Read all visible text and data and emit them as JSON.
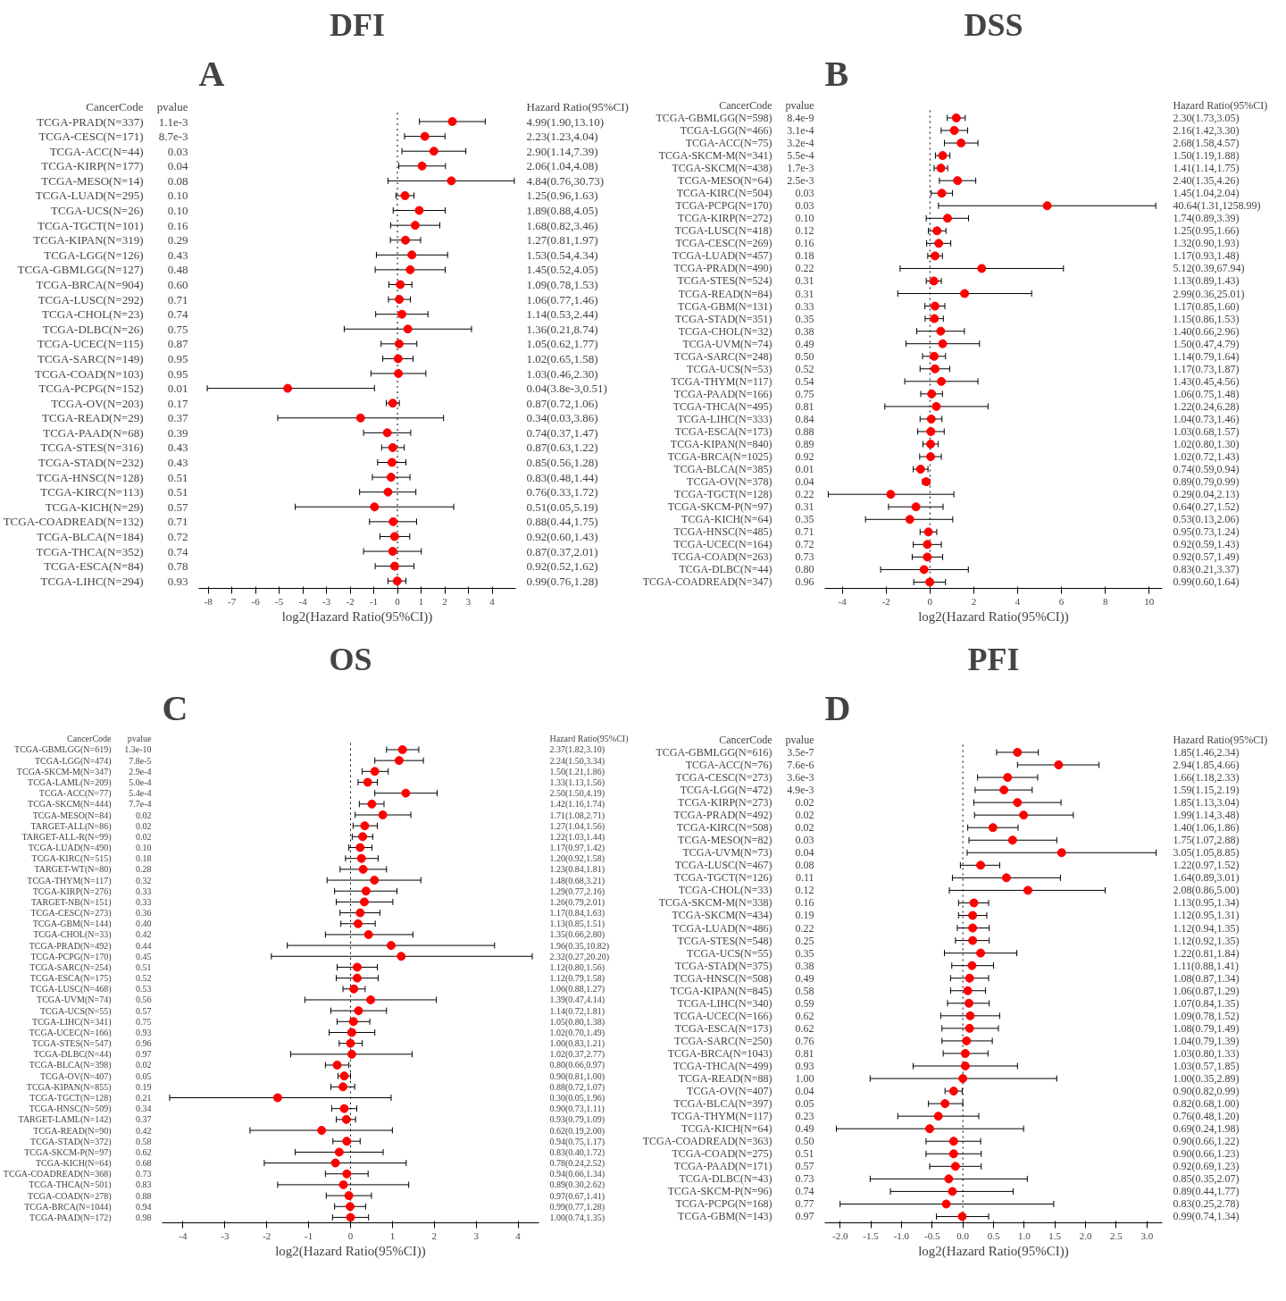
{
  "chart_data": [
    {
      "type": "scatter",
      "orientation": "horizontal",
      "title": "DFI",
      "xlabel": "log2(Hazard Ratio(95%CI))",
      "color": "#ff0000",
      "marker": "circle",
      "grid": false,
      "xlim": [
        -8.4,
        5.0
      ],
      "xticks": [
        -8,
        -7,
        -6,
        -5,
        -4,
        -3,
        -2,
        -1,
        0,
        1,
        2,
        3,
        4
      ],
      "ref_lines": [
        {
          "axis": "x",
          "value": 0,
          "line_style": "dotted"
        }
      ],
      "categories": [
        "TCGA-PRAD(N=337)",
        "TCGA-CESC(N=171)",
        "TCGA-ACC(N=44)",
        "TCGA-KIRP(N=177)",
        "TCGA-MESO(N=14)",
        "TCGA-LUAD(N=295)",
        "TCGA-UCS(N=26)",
        "TCGA-TGCT(N=101)",
        "TCGA-KIPAN(N=319)",
        "TCGA-LGG(N=126)",
        "TCGA-GBMLGG(N=127)",
        "TCGA-BRCA(N=904)",
        "TCGA-LUSC(N=292)",
        "TCGA-CHOL(N=23)",
        "TCGA-DLBC(N=26)",
        "TCGA-UCEC(N=115)",
        "TCGA-SARC(N=149)",
        "TCGA-COAD(N=103)",
        "TCGA-PCPG(N=152)",
        "TCGA-OV(N=203)",
        "TCGA-READ(N=29)",
        "TCGA-PAAD(N=68)",
        "TCGA-STES(N=316)",
        "TCGA-STAD(N=232)",
        "TCGA-HNSC(N=128)",
        "TCGA-KIRC(N=113)",
        "TCGA-KICH(N=29)",
        "TCGA-COADREAD(N=132)",
        "TCGA-BLCA(N=184)",
        "TCGA-THCA(N=352)",
        "TCGA-ESCA(N=84)",
        "TCGA-LIHC(N=294)"
      ],
      "values": [
        2.32,
        1.16,
        1.54,
        1.04,
        2.28,
        0.32,
        0.92,
        0.75,
        0.34,
        0.61,
        0.54,
        0.12,
        0.08,
        0.19,
        0.44,
        0.07,
        0.03,
        0.04,
        -4.64,
        -0.2,
        -1.56,
        -0.43,
        -0.2,
        -0.23,
        -0.27,
        -0.4,
        -0.97,
        -0.18,
        -0.12,
        -0.2,
        -0.12,
        -0.01
      ],
      "errors": [
        [
          0.93,
          3.71
        ],
        [
          0.3,
          2.01
        ],
        [
          0.19,
          2.89
        ],
        [
          0.06,
          2.03
        ],
        [
          -0.4,
          4.94
        ],
        [
          -0.06,
          0.7
        ],
        [
          -0.18,
          2.02
        ],
        [
          -0.29,
          1.79
        ],
        [
          -0.3,
          0.98
        ],
        [
          -0.89,
          2.12
        ],
        [
          -0.94,
          2.02
        ],
        [
          -0.36,
          0.61
        ],
        [
          -0.38,
          0.55
        ],
        [
          -0.92,
          1.29
        ],
        [
          -2.25,
          3.13
        ],
        [
          -0.69,
          0.82
        ],
        [
          -0.62,
          0.66
        ],
        [
          -1.12,
          1.2
        ],
        [
          -8.04,
          -0.97
        ],
        [
          -0.47,
          0.08
        ],
        [
          -5.06,
          1.95
        ],
        [
          -1.43,
          0.56
        ],
        [
          -0.67,
          0.29
        ],
        [
          -0.84,
          0.36
        ],
        [
          -1.06,
          0.53
        ],
        [
          -1.6,
          0.78
        ],
        [
          -4.32,
          2.38
        ],
        [
          -1.18,
          0.81
        ],
        [
          -0.74,
          0.52
        ],
        [
          -1.43,
          1.01
        ],
        [
          -0.94,
          0.7
        ],
        [
          -0.4,
          0.36
        ]
      ],
      "annotations": [
        "A",
        "CancerCode",
        "pvalue",
        "Hazard Ratio(95%CI)",
        "1.1e-3",
        "8.7e-3",
        "0.03",
        "0.04",
        "0.08",
        "0.10",
        "0.10",
        "0.16",
        "0.29",
        "0.43",
        "0.48",
        "0.60",
        "0.71",
        "0.74",
        "0.75",
        "0.87",
        "0.95",
        "0.95",
        "0.01",
        "0.17",
        "0.37",
        "0.39",
        "0.43",
        "0.43",
        "0.51",
        "0.51",
        "0.57",
        "0.71",
        "0.72",
        "0.74",
        "0.78",
        "0.93",
        "4.99(1.90,13.10)",
        "2.23(1.23,4.04)",
        "2.90(1.14,7.39)",
        "2.06(1.04,4.08)",
        "4.84(0.76,30.73)",
        "1.25(0.96,1.63)",
        "1.89(0.88,4.05)",
        "1.68(0.82,3.46)",
        "1.27(0.81,1.97)",
        "1.53(0.54,4.34)",
        "1.45(0.52,4.05)",
        "1.09(0.78,1.53)",
        "1.06(0.77,1.46)",
        "1.14(0.53,2.44)",
        "1.36(0.21,8.74)",
        "1.05(0.62,1.77)",
        "1.02(0.65,1.58)",
        "1.03(0.46,2.30)",
        "0.04(3.8e-3,0.51)",
        "0.87(0.72,1.06)",
        "0.34(0.03,3.86)",
        "0.74(0.37,1.47)",
        "0.87(0.63,1.22)",
        "0.85(0.56,1.28)",
        "0.83(0.48,1.44)",
        "0.76(0.33,1.72)",
        "0.51(0.05,5.19)",
        "0.88(0.44,1.75)",
        "0.92(0.60,1.43)",
        "0.87(0.37,2.01)",
        "0.92(0.52,1.62)",
        "0.99(0.76,1.28)"
      ]
    },
    {
      "type": "scatter",
      "orientation": "horizontal",
      "title": "DSS",
      "xlabel": "log2(Hazard Ratio(95%CI))",
      "color": "#ff0000",
      "marker": "circle",
      "grid": false,
      "xlim": [
        -4.8,
        10.6
      ],
      "xticks": [
        -4,
        -2,
        0,
        2,
        4,
        6,
        8,
        10
      ],
      "ref_lines": [
        {
          "axis": "x",
          "value": 0,
          "line_style": "dotted"
        }
      ],
      "categories": [
        "TCGA-GBMLGG(N=598)",
        "TCGA-LGG(N=466)",
        "TCGA-ACC(N=75)",
        "TCGA-SKCM-M(N=341)",
        "TCGA-SKCM(N=438)",
        "TCGA-MESO(N=64)",
        "TCGA-KIRC(N=504)",
        "TCGA-PCPG(N=170)",
        "TCGA-KIRP(N=272)",
        "TCGA-LUSC(N=418)",
        "TCGA-CESC(N=269)",
        "TCGA-LUAD(N=457)",
        "TCGA-PRAD(N=490)",
        "TCGA-STES(N=524)",
        "TCGA-READ(N=84)",
        "TCGA-GBM(N=131)",
        "TCGA-STAD(N=351)",
        "TCGA-CHOL(N=32)",
        "TCGA-UVM(N=74)",
        "TCGA-SARC(N=248)",
        "TCGA-UCS(N=53)",
        "TCGA-THYM(N=117)",
        "TCGA-PAAD(N=166)",
        "TCGA-THCA(N=495)",
        "TCGA-LIHC(N=333)",
        "TCGA-ESCA(N=173)",
        "TCGA-KIPAN(N=840)",
        "TCGA-BRCA(N=1025)",
        "TCGA-BLCA(N=385)",
        "TCGA-OV(N=378)",
        "TCGA-TGCT(N=128)",
        "TCGA-SKCM-P(N=97)",
        "TCGA-KICH(N=64)",
        "TCGA-HNSC(N=485)",
        "TCGA-UCEC(N=164)",
        "TCGA-COAD(N=263)",
        "TCGA-DLBC(N=44)",
        "TCGA-COADREAD(N=347)"
      ],
      "values": [
        1.2,
        1.11,
        1.42,
        0.58,
        0.5,
        1.26,
        0.54,
        5.35,
        0.8,
        0.32,
        0.4,
        0.23,
        2.36,
        0.18,
        1.58,
        0.23,
        0.2,
        0.49,
        0.58,
        0.19,
        0.23,
        0.52,
        0.08,
        0.29,
        0.06,
        0.04,
        0.03,
        0.03,
        -0.43,
        -0.17,
        -1.79,
        -0.64,
        -0.92,
        -0.07,
        -0.12,
        -0.12,
        -0.27,
        -0.01
      ],
      "errors": [
        [
          0.79,
          1.61
        ],
        [
          0.51,
          1.72
        ],
        [
          0.66,
          2.19
        ],
        [
          0.25,
          0.91
        ],
        [
          0.19,
          0.81
        ],
        [
          0.43,
          2.09
        ],
        [
          0.06,
          1.03
        ],
        [
          0.39,
          10.3
        ],
        [
          -0.17,
          1.76
        ],
        [
          -0.07,
          0.73
        ],
        [
          -0.15,
          0.95
        ],
        [
          -0.1,
          0.57
        ],
        [
          -1.36,
          6.09
        ],
        [
          -0.17,
          0.52
        ],
        [
          -1.47,
          4.64
        ],
        [
          -0.23,
          0.68
        ],
        [
          -0.22,
          0.61
        ],
        [
          -0.6,
          1.57
        ],
        [
          -1.09,
          2.26
        ],
        [
          -0.34,
          0.71
        ],
        [
          -0.45,
          0.9
        ],
        [
          -1.15,
          2.19
        ],
        [
          -0.42,
          0.57
        ],
        [
          -2.06,
          2.65
        ],
        [
          -0.45,
          0.55
        ],
        [
          -0.56,
          0.65
        ],
        [
          -0.32,
          0.38
        ],
        [
          -0.47,
          0.52
        ],
        [
          -0.76,
          -0.09
        ],
        [
          -0.34,
          -0.01
        ],
        [
          -4.64,
          1.09
        ],
        [
          -1.89,
          0.6
        ],
        [
          -2.94,
          1.04
        ],
        [
          -0.45,
          0.31
        ],
        [
          -0.76,
          0.52
        ],
        [
          -0.81,
          0.58
        ],
        [
          -2.25,
          1.75
        ],
        [
          -0.74,
          0.71
        ]
      ],
      "annotations": [
        "B",
        "CancerCode",
        "pvalue",
        "Hazard Ratio(95%CI)",
        "8.4e-9",
        "3.1e-4",
        "3.2e-4",
        "5.5e-4",
        "1.7e-3",
        "2.5e-3",
        "0.03",
        "0.03",
        "0.10",
        "0.12",
        "0.16",
        "0.18",
        "0.22",
        "0.31",
        "0.31",
        "0.33",
        "0.35",
        "0.38",
        "0.49",
        "0.50",
        "0.52",
        "0.54",
        "0.75",
        "0.81",
        "0.84",
        "0.88",
        "0.89",
        "0.92",
        "0.01",
        "0.04",
        "0.22",
        "0.31",
        "0.35",
        "0.71",
        "0.72",
        "0.73",
        "0.80",
        "0.96",
        "2.30(1.73,3.05)",
        "2.16(1.42,3.30)",
        "2.68(1.58,4.57)",
        "1.50(1.19,1.88)",
        "1.41(1.14,1.75)",
        "2.40(1.35,4.26)",
        "1.45(1.04,2.04)",
        "40.64(1.31,1258.99)",
        "1.74(0.89,3.39)",
        "1.25(0.95,1.66)",
        "1.32(0.90,1.93)",
        "1.17(0.93,1.48)",
        "5.12(0.39,67.94)",
        "1.13(0.89,1.43)",
        "2.99(0.36,25.01)",
        "1.17(0.85,1.60)",
        "1.15(0.86,1.53)",
        "1.40(0.66,2.96)",
        "1.50(0.47,4.79)",
        "1.14(0.79,1.64)",
        "1.17(0.73,1.87)",
        "1.43(0.45,4.56)",
        "1.06(0.75,1.48)",
        "1.22(0.24,6.28)",
        "1.04(0.73,1.46)",
        "1.03(0.68,1.57)",
        "1.02(0.80,1.30)",
        "1.02(0.72,1.43)",
        "0.74(0.59,0.94)",
        "0.89(0.79,0.99)",
        "0.29(0.04,2.13)",
        "0.64(0.27,1.52)",
        "0.53(0.13,2.06)",
        "0.95(0.73,1.24)",
        "0.92(0.59,1.43)",
        "0.92(0.57,1.49)",
        "0.83(0.21,3.37)",
        "0.99(0.60,1.64)"
      ]
    },
    {
      "type": "scatter",
      "orientation": "horizontal",
      "title": "OS",
      "xlabel": "log2(Hazard Ratio(95%CI))",
      "color": "#ff0000",
      "marker": "circle",
      "grid": false,
      "xlim": [
        -4.5,
        4.5
      ],
      "xticks": [
        -4,
        -3,
        -2,
        -1,
        0,
        1,
        2,
        3,
        4
      ],
      "ref_lines": [
        {
          "axis": "x",
          "value": 0,
          "line_style": "dotted"
        }
      ],
      "categories": [
        "TCGA-GBMLGG(N=619)",
        "TCGA-LGG(N=474)",
        "TCGA-SKCM-M(N=347)",
        "TCGA-LAML(N=209)",
        "TCGA-ACC(N=77)",
        "TCGA-SKCM(N=444)",
        "TCGA-MESO(N=84)",
        "TARGET-ALL(N=86)",
        "TARGET-ALL-R(N=99)",
        "TCGA-LUAD(N=490)",
        "TCGA-KIRC(N=515)",
        "TARGET-WT(N=80)",
        "TCGA-THYM(N=117)",
        "TCGA-KIRP(N=276)",
        "TARGET-NB(N=151)",
        "TCGA-CESC(N=273)",
        "TCGA-GBM(N=144)",
        "TCGA-CHOL(N=33)",
        "TCGA-PRAD(N=492)",
        "TCGA-PCPG(N=170)",
        "TCGA-SARC(N=254)",
        "TCGA-ESCA(N=175)",
        "TCGA-LUSC(N=468)",
        "TCGA-UVM(N=74)",
        "TCGA-UCS(N=55)",
        "TCGA-LIHC(N=341)",
        "TCGA-UCEC(N=166)",
        "TCGA-STES(N=547)",
        "TCGA-DLBC(N=44)",
        "TCGA-BLCA(N=398)",
        "TCGA-OV(N=407)",
        "TCGA-KIPAN(N=855)",
        "TCGA-TGCT(N=128)",
        "TCGA-HNSC(N=509)",
        "TARGET-LAML(N=142)",
        "TCGA-READ(N=90)",
        "TCGA-STAD(N=372)",
        "TCGA-SKCM-P(N=97)",
        "TCGA-KICH(N=64)",
        "TCGA-COADREAD(N=368)",
        "TCGA-THCA(N=501)",
        "TCGA-COAD(N=278)",
        "TCGA-BRCA(N=1044)",
        "TCGA-PAAD(N=172)"
      ],
      "values": [
        1.24,
        1.16,
        0.58,
        0.41,
        1.32,
        0.51,
        0.77,
        0.34,
        0.29,
        0.23,
        0.26,
        0.3,
        0.57,
        0.37,
        0.33,
        0.23,
        0.18,
        0.43,
        0.97,
        1.21,
        0.16,
        0.16,
        0.08,
        0.48,
        0.19,
        0.07,
        0.03,
        0.0,
        0.03,
        -0.32,
        -0.15,
        -0.18,
        -1.74,
        -0.15,
        -0.1,
        -0.69,
        -0.09,
        -0.27,
        -0.36,
        -0.09,
        -0.17,
        -0.04,
        -0.01,
        0.0
      ],
      "errors": [
        [
          0.86,
          1.63
        ],
        [
          0.58,
          1.74
        ],
        [
          0.28,
          0.9
        ],
        [
          0.18,
          0.64
        ],
        [
          0.58,
          2.07
        ],
        [
          0.21,
          0.8
        ],
        [
          0.11,
          1.44
        ],
        [
          0.06,
          0.64
        ],
        [
          0.04,
          0.53
        ],
        [
          -0.04,
          0.51
        ],
        [
          -0.12,
          0.66
        ],
        [
          -0.25,
          0.86
        ],
        [
          -0.56,
          1.68
        ],
        [
          -0.38,
          1.11
        ],
        [
          -0.34,
          1.01
        ],
        [
          -0.25,
          0.7
        ],
        [
          -0.23,
          0.59
        ],
        [
          -0.6,
          1.49
        ],
        [
          -1.51,
          3.44
        ],
        [
          -1.89,
          4.34
        ],
        [
          -0.32,
          0.64
        ],
        [
          -0.34,
          0.66
        ],
        [
          -0.18,
          0.35
        ],
        [
          -1.09,
          2.05
        ],
        [
          -0.47,
          0.86
        ],
        [
          -0.32,
          0.46
        ],
        [
          -0.51,
          0.58
        ],
        [
          -0.27,
          0.28
        ],
        [
          -1.43,
          1.47
        ],
        [
          -0.6,
          -0.04
        ],
        [
          -0.3,
          0.0
        ],
        [
          -0.47,
          0.1
        ],
        [
          -4.32,
          0.97
        ],
        [
          -0.45,
          0.15
        ],
        [
          -0.34,
          0.12
        ],
        [
          -2.4,
          1.0
        ],
        [
          -0.42,
          0.23
        ],
        [
          -1.32,
          0.78
        ],
        [
          -2.06,
          1.33
        ],
        [
          -0.6,
          0.42
        ],
        [
          -1.74,
          1.39
        ],
        [
          -0.58,
          0.5
        ],
        [
          -0.38,
          0.36
        ],
        [
          -0.43,
          0.43
        ]
      ],
      "annotations": [
        "C",
        "CancerCode",
        "pvalue",
        "Hazard Ratio(95%CI)",
        "1.3e-10",
        "7.8e-5",
        "2.9e-4",
        "5.0e-4",
        "5.4e-4",
        "7.7e-4",
        "0.02",
        "0.02",
        "0.02",
        "0.10",
        "0.18",
        "0.28",
        "0.32",
        "0.33",
        "0.33",
        "0.36",
        "0.40",
        "0.42",
        "0.44",
        "0.45",
        "0.51",
        "0.52",
        "0.53",
        "0.56",
        "0.57",
        "0.75",
        "0.93",
        "0.96",
        "0.97",
        "0.02",
        "0.05",
        "0.19",
        "0.21",
        "0.34",
        "0.37",
        "0.42",
        "0.58",
        "0.62",
        "0.68",
        "0.73",
        "0.83",
        "0.88",
        "0.94",
        "0.98",
        "2.37(1.82,3.10)",
        "2.24(1.50,3.34)",
        "1.50(1.21,1.86)",
        "1.33(1.13,1.56)",
        "2.50(1.50,4.19)",
        "1.42(1.16,1.74)",
        "1.71(1.08,2.71)",
        "1.27(1.04,1.56)",
        "1.22(1.03,1.44)",
        "1.17(0.97,1.42)",
        "1.20(0.92,1.58)",
        "1.23(0.84,1.81)",
        "1.48(0.68,3.21)",
        "1.29(0.77,2.16)",
        "1.26(0.79,2.01)",
        "1.17(0.84,1.63)",
        "1.13(0.85,1.51)",
        "1.35(0.66,2.80)",
        "1.96(0.35,10.82)",
        "2.32(0.27,20.20)",
        "1.12(0.80,1.56)",
        "1.12(0.79,1.58)",
        "1.06(0.88,1.27)",
        "1.39(0.47,4.14)",
        "1.14(0.72,1.81)",
        "1.05(0.80,1.38)",
        "1.02(0.70,1.49)",
        "1.00(0.83,1.21)",
        "1.02(0.37,2.77)",
        "0.80(0.66,0.97)",
        "0.90(0.81,1.00)",
        "0.88(0.72,1.07)",
        "0.30(0.05,1.96)",
        "0.90(0.73,1.11)",
        "0.93(0.79,1.09)",
        "0.62(0.19,2.00)",
        "0.94(0.75,1.17)",
        "0.83(0.40,1.72)",
        "0.78(0.24,2.52)",
        "0.94(0.66,1.34)",
        "0.89(0.30,2.62)",
        "0.97(0.67,1.41)",
        "0.99(0.77,1.28)",
        "1.00(0.74,1.35)"
      ]
    },
    {
      "type": "scatter",
      "orientation": "horizontal",
      "title": "PFI",
      "xlabel": "log2(Hazard Ratio(95%CI))",
      "color": "#ff0000",
      "marker": "circle",
      "grid": false,
      "xlim": [
        -2.25,
        3.25
      ],
      "xticks": [
        {
          "value": -2,
          "label": "-2.0"
        },
        {
          "value": -1.5,
          "label": "-1.5"
        },
        {
          "value": -1,
          "label": "-1.0"
        },
        {
          "value": -0.5,
          "label": "-0.5"
        },
        {
          "value": 0,
          "label": "0.0"
        },
        {
          "value": 0.5,
          "label": "0.5"
        },
        {
          "value": 1,
          "label": "1.0"
        },
        {
          "value": 1.5,
          "label": "1.5"
        },
        {
          "value": 2,
          "label": "2.0"
        },
        {
          "value": 2.5,
          "label": "2.5"
        },
        {
          "value": 3,
          "label": "3.0"
        }
      ],
      "ref_lines": [
        {
          "axis": "x",
          "value": 0,
          "line_style": "dotted"
        }
      ],
      "categories": [
        "TCGA-GBMLGG(N=616)",
        "TCGA-ACC(N=76)",
        "TCGA-CESC(N=273)",
        "TCGA-LGG(N=472)",
        "TCGA-KIRP(N=273)",
        "TCGA-PRAD(N=492)",
        "TCGA-KIRC(N=508)",
        "TCGA-MESO(N=82)",
        "TCGA-UVM(N=73)",
        "TCGA-LUSC(N=467)",
        "TCGA-TGCT(N=126)",
        "TCGA-CHOL(N=33)",
        "TCGA-SKCM-M(N=338)",
        "TCGA-SKCM(N=434)",
        "TCGA-LUAD(N=486)",
        "TCGA-STES(N=548)",
        "TCGA-UCS(N=55)",
        "TCGA-STAD(N=375)",
        "TCGA-HNSC(N=508)",
        "TCGA-KIPAN(N=845)",
        "TCGA-LIHC(N=340)",
        "TCGA-UCEC(N=166)",
        "TCGA-ESCA(N=173)",
        "TCGA-SARC(N=250)",
        "TCGA-BRCA(N=1043)",
        "TCGA-THCA(N=499)",
        "TCGA-READ(N=88)",
        "TCGA-OV(N=407)",
        "TCGA-BLCA(N=397)",
        "TCGA-THYM(N=117)",
        "TCGA-KICH(N=64)",
        "TCGA-COADREAD(N=363)",
        "TCGA-COAD(N=275)",
        "TCGA-PAAD(N=171)",
        "TCGA-DLBC(N=43)",
        "TCGA-SKCM-P(N=96)",
        "TCGA-PCPG(N=168)",
        "TCGA-GBM(N=143)"
      ],
      "values": [
        0.89,
        1.56,
        0.73,
        0.67,
        0.89,
        0.99,
        0.49,
        0.81,
        1.61,
        0.29,
        0.71,
        1.06,
        0.18,
        0.16,
        0.16,
        0.16,
        0.29,
        0.15,
        0.11,
        0.08,
        0.1,
        0.12,
        0.11,
        0.06,
        0.04,
        0.04,
        0.0,
        -0.15,
        -0.29,
        -0.4,
        -0.54,
        -0.15,
        -0.15,
        -0.12,
        -0.23,
        -0.17,
        -0.27,
        -0.01
      ],
      "errors": [
        [
          0.55,
          1.23
        ],
        [
          0.89,
          2.22
        ],
        [
          0.24,
          1.22
        ],
        [
          0.2,
          1.13
        ],
        [
          0.18,
          1.6
        ],
        [
          0.19,
          1.8
        ],
        [
          0.08,
          0.9
        ],
        [
          0.1,
          1.53
        ],
        [
          0.07,
          3.15
        ],
        [
          -0.04,
          0.6
        ],
        [
          -0.17,
          1.59
        ],
        [
          -0.22,
          2.32
        ],
        [
          -0.07,
          0.42
        ],
        [
          -0.07,
          0.39
        ],
        [
          -0.09,
          0.43
        ],
        [
          -0.12,
          0.43
        ],
        [
          -0.3,
          0.88
        ],
        [
          -0.18,
          0.5
        ],
        [
          -0.2,
          0.42
        ],
        [
          -0.2,
          0.37
        ],
        [
          -0.25,
          0.43
        ],
        [
          -0.36,
          0.6
        ],
        [
          -0.34,
          0.58
        ],
        [
          -0.34,
          0.48
        ],
        [
          -0.32,
          0.41
        ],
        [
          -0.81,
          0.89
        ],
        [
          -1.51,
          1.53
        ],
        [
          -0.29,
          -0.01
        ],
        [
          -0.56,
          0.0
        ],
        [
          -1.06,
          0.26
        ],
        [
          -2.06,
          0.99
        ],
        [
          -0.6,
          0.29
        ],
        [
          -0.6,
          0.3
        ],
        [
          -0.54,
          0.3
        ],
        [
          -1.51,
          1.05
        ],
        [
          -1.18,
          0.82
        ],
        [
          -2.0,
          1.48
        ],
        [
          -0.43,
          0.42
        ]
      ],
      "annotations": [
        "D",
        "CancerCode",
        "pvalue",
        "Hazard Ratio(95%CI)",
        "3.5e-7",
        "7.6e-6",
        "3.6e-3",
        "4.9e-3",
        "0.02",
        "0.02",
        "0.02",
        "0.03",
        "0.04",
        "0.08",
        "0.11",
        "0.12",
        "0.16",
        "0.19",
        "0.22",
        "0.25",
        "0.35",
        "0.38",
        "0.49",
        "0.58",
        "0.59",
        "0.62",
        "0.62",
        "0.76",
        "0.81",
        "0.93",
        "1.00",
        "0.04",
        "0.05",
        "0.23",
        "0.49",
        "0.50",
        "0.51",
        "0.57",
        "0.73",
        "0.74",
        "0.77",
        "0.97",
        "1.85(1.46,2.34)",
        "2.94(1.85,4.66)",
        "1.66(1.18,2.33)",
        "1.59(1.15,2.19)",
        "1.85(1.13,3.04)",
        "1.99(1.14,3.48)",
        "1.40(1.06,1.86)",
        "1.75(1.07,2.88)",
        "3.05(1.05,8.85)",
        "1.22(0.97,1.52)",
        "1.64(0.89,3.01)",
        "2.08(0.86,5.00)",
        "1.13(0.95,1.34)",
        "1.12(0.95,1.31)",
        "1.12(0.94,1.35)",
        "1.12(0.92,1.35)",
        "1.22(0.81,1.84)",
        "1.11(0.88,1.41)",
        "1.08(0.87,1.34)",
        "1.06(0.87,1.29)",
        "1.07(0.84,1.35)",
        "1.09(0.78,1.52)",
        "1.08(0.79,1.49)",
        "1.04(0.79,1.39)",
        "1.03(0.80,1.33)",
        "1.03(0.57,1.85)",
        "1.00(0.35,2.89)",
        "0.90(0.82,0.99)",
        "0.82(0.68,1.00)",
        "0.76(0.48,1.20)",
        "0.69(0.24,1.98)",
        "0.90(0.66,1.22)",
        "0.90(0.66,1.23)",
        "0.92(0.69,1.23)",
        "0.85(0.35,2.07)",
        "0.89(0.44,1.77)",
        "0.83(0.25,2.78)",
        "0.99(0.74,1.34)"
      ]
    }
  ]
}
